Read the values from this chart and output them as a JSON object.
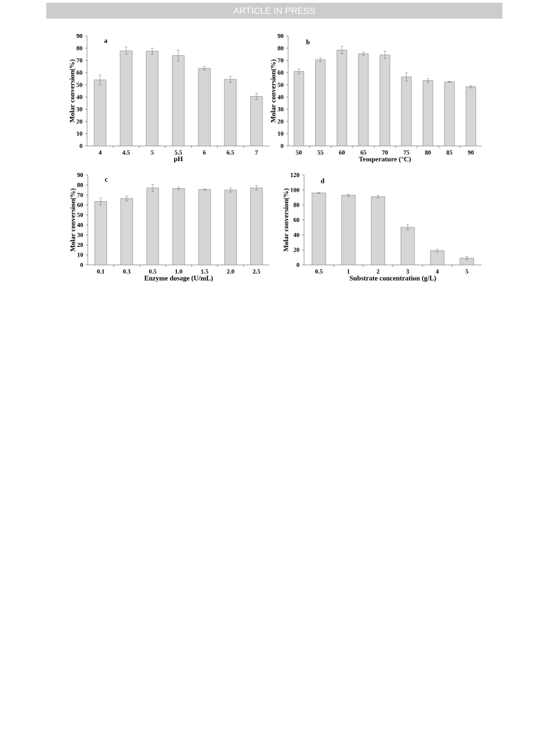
{
  "chart_data": [
    {
      "type": "other",
      "annotations": [
        "ARTICLE IN PRESS"
      ]
    },
    {
      "type": "bar",
      "categories": [
        "4",
        "4.5",
        "5",
        "5.5",
        "6",
        "6.5",
        "7"
      ],
      "xlabel": "pH",
      "ylabel": "Molar conversion(%)",
      "annotations": [
        "a"
      ],
      "color": "#d6d6d6",
      "values": [
        54,
        78,
        77.5,
        74,
        63.5,
        54.5,
        40.5
      ],
      "errors": [
        4,
        3,
        2.5,
        4.5,
        1.5,
        2.5,
        2.5
      ],
      "ylim": [
        0,
        90
      ],
      "yticks": [
        0,
        10,
        20,
        30,
        40,
        50,
        60,
        70,
        80,
        90
      ]
    },
    {
      "type": "bar",
      "categories": [
        "50",
        "55",
        "60",
        "65",
        "70",
        "75",
        "80",
        "85",
        "90"
      ],
      "xlabel": "Temperature (°C)",
      "ylabel": "Molar conversion(%)",
      "annotations": [
        "b"
      ],
      "color": "#d6d6d6",
      "values": [
        61,
        70.5,
        78.5,
        75.5,
        74.5,
        56.5,
        53.5,
        52.5,
        48.5
      ],
      "errors": [
        2,
        1.5,
        3,
        1.5,
        3,
        3.5,
        1.5,
        0.5,
        1
      ],
      "ylim": [
        0,
        90
      ],
      "yticks": [
        0,
        10,
        20,
        30,
        40,
        50,
        60,
        70,
        80,
        90
      ]
    },
    {
      "type": "bar",
      "categories": [
        "0.1",
        "0.3",
        "0.5",
        "1.0",
        "1.5",
        "2.0",
        "2.5"
      ],
      "xlabel": "Enzyme dosage (U/mL)",
      "ylabel": "Molar conversion(%)",
      "annotations": [
        "c"
      ],
      "color": "#d6d6d6",
      "values": [
        63.5,
        66.5,
        77,
        76.5,
        75.5,
        75,
        77
      ],
      "errors": [
        3.5,
        2.5,
        3.5,
        1.5,
        0.5,
        2,
        2.5
      ],
      "ylim": [
        0,
        90
      ],
      "yticks": [
        0,
        10,
        20,
        30,
        40,
        50,
        60,
        70,
        80,
        90
      ]
    },
    {
      "type": "bar",
      "categories": [
        "0.5",
        "1",
        "2",
        "3",
        "4",
        "5"
      ],
      "xlabel": "Substrate concentration (g/L)",
      "ylabel": "Molar conversion(%)",
      "annotations": [
        "d"
      ],
      "color": "#d6d6d6",
      "values": [
        96,
        93,
        91,
        50,
        19,
        9
      ],
      "errors": [
        0.5,
        1.5,
        2,
        3.5,
        2,
        2.5
      ],
      "ylim": [
        0,
        120
      ],
      "yticks": [
        0,
        20,
        40,
        60,
        80,
        100,
        120
      ]
    }
  ]
}
